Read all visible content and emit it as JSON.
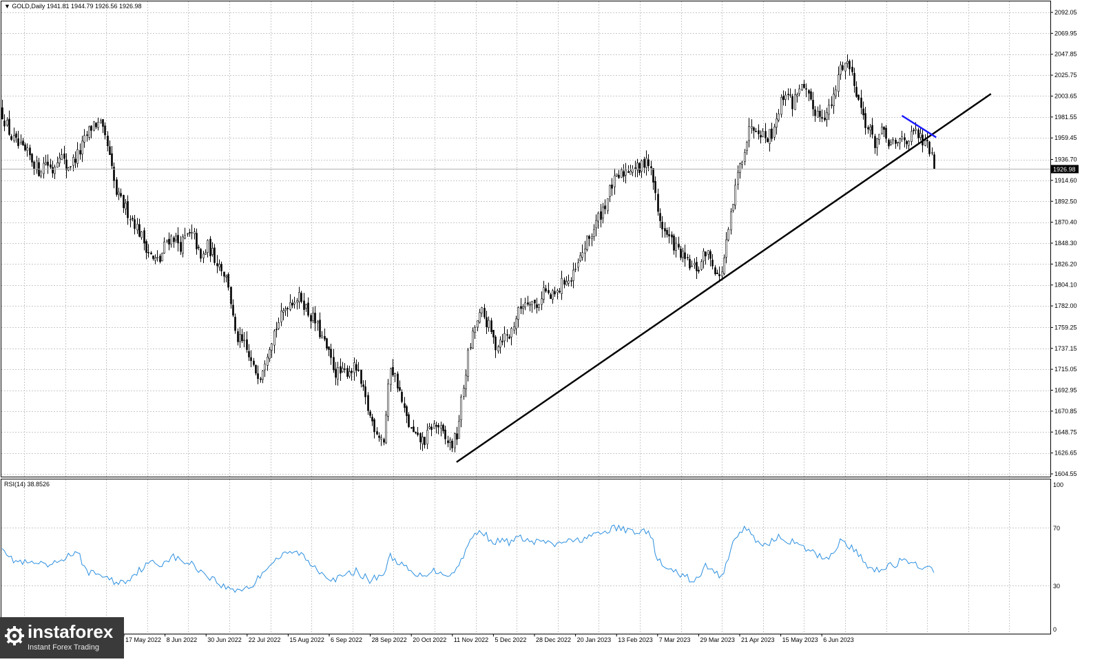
{
  "main_header": "▼ GOLD,Daily  1941.81 1944.79 1926.56 1926.98",
  "rsi_header": "RSI(14) 38.8526",
  "last_price_label": "1926.98",
  "logo": {
    "name": "instaforex",
    "tagline": "Instant Forex Trading"
  },
  "colors": {
    "candles": "#000000",
    "support_line": "#000000",
    "resistance_line": "#1a1aff",
    "rsi_line": "#2b8fe0",
    "grid": "#c8c8c8",
    "background": "#ffffff"
  },
  "chart_data": [
    {
      "type": "candlestick",
      "symbol": "GOLD",
      "timeframe": "Daily",
      "last": {
        "open": 1941.81,
        "high": 1944.79,
        "low": 1926.56,
        "close": 1926.98
      },
      "ylim": [
        1604.55,
        2100
      ],
      "y_ticks": [
        "2092.05",
        "2069.95",
        "2047.85",
        "2025.75",
        "2003.65",
        "1981.55",
        "1959.45",
        "1936.70",
        "1914.60",
        "1892.50",
        "1870.40",
        "1848.30",
        "1826.20",
        "1804.10",
        "1782.00",
        "1759.25",
        "1737.15",
        "1715.05",
        "1692.95",
        "1670.85",
        "1648.75",
        "1626.65",
        "1604.55"
      ],
      "x_ticks": [
        "17 May 2022",
        "8 Jun 2022",
        "30 Jun 2022",
        "22 Jul 2022",
        "15 Aug 2022",
        "6 Sep 2022",
        "28 Sep 2022",
        "20 Oct 2022",
        "11 Nov 2022",
        "5 Dec 2022",
        "28 Dec 2022",
        "20 Jan 2023",
        "13 Feb 2023",
        "7 Mar 2023",
        "29 Mar 2023",
        "21 Apr 2023",
        "15 May 2023",
        "6 Jun 2023"
      ],
      "close_path": [
        [
          0,
          1985
        ],
        [
          4,
          1960
        ],
        [
          8,
          1948
        ],
        [
          12,
          1940
        ],
        [
          16,
          1925
        ],
        [
          19,
          1935
        ],
        [
          22,
          1925
        ],
        [
          25,
          1945
        ],
        [
          28,
          1928
        ],
        [
          31,
          1935
        ],
        [
          34,
          1945
        ],
        [
          37,
          1962
        ],
        [
          40,
          1975
        ],
        [
          43,
          1972
        ],
        [
          46,
          1950
        ],
        [
          50,
          1900
        ],
        [
          54,
          1885
        ],
        [
          58,
          1870
        ],
        [
          62,
          1850
        ],
        [
          66,
          1830
        ],
        [
          69,
          1830
        ],
        [
          72,
          1852
        ],
        [
          75,
          1855
        ],
        [
          78,
          1846
        ],
        [
          81,
          1856
        ],
        [
          84,
          1855
        ],
        [
          87,
          1830
        ],
        [
          90,
          1845
        ],
        [
          93,
          1833
        ],
        [
          96,
          1823
        ],
        [
          99,
          1805
        ],
        [
          102,
          1750
        ],
        [
          106,
          1740
        ],
        [
          110,
          1715
        ],
        [
          113,
          1710
        ],
        [
          116,
          1735
        ],
        [
          119,
          1755
        ],
        [
          122,
          1770
        ],
        [
          125,
          1785
        ],
        [
          128,
          1790
        ],
        [
          131,
          1790
        ],
        [
          134,
          1775
        ],
        [
          137,
          1765
        ],
        [
          140,
          1748
        ],
        [
          143,
          1730
        ],
        [
          146,
          1712
        ],
        [
          149,
          1710
        ],
        [
          152,
          1715
        ],
        [
          155,
          1716
        ],
        [
          158,
          1690
        ],
        [
          161,
          1665
        ],
        [
          164,
          1650
        ],
        [
          167,
          1640
        ],
        [
          170,
          1720
        ],
        [
          173,
          1700
        ],
        [
          176,
          1670
        ],
        [
          179,
          1650
        ],
        [
          182,
          1640
        ],
        [
          185,
          1640
        ],
        [
          188,
          1655
        ],
        [
          191,
          1655
        ],
        [
          194,
          1640
        ],
        [
          197,
          1636
        ],
        [
          199,
          1645
        ],
        [
          201,
          1680
        ],
        [
          204,
          1730
        ],
        [
          207,
          1760
        ],
        [
          210,
          1775
        ],
        [
          213,
          1760
        ],
        [
          216,
          1740
        ],
        [
          219,
          1750
        ],
        [
          222,
          1750
        ],
        [
          225,
          1770
        ],
        [
          228,
          1785
        ],
        [
          231,
          1790
        ],
        [
          234,
          1780
        ],
        [
          237,
          1800
        ],
        [
          240,
          1790
        ],
        [
          243,
          1795
        ],
        [
          246,
          1810
        ],
        [
          249,
          1808
        ],
        [
          252,
          1825
        ],
        [
          255,
          1845
        ],
        [
          258,
          1858
        ],
        [
          261,
          1875
        ],
        [
          264,
          1890
        ],
        [
          267,
          1910
        ],
        [
          270,
          1918
        ],
        [
          273,
          1925
        ],
        [
          276,
          1930
        ],
        [
          279,
          1925
        ],
        [
          282,
          1940
        ],
        [
          285,
          1915
        ],
        [
          287,
          1880
        ],
        [
          290,
          1860
        ],
        [
          293,
          1850
        ],
        [
          296,
          1840
        ],
        [
          299,
          1830
        ],
        [
          302,
          1822
        ],
        [
          305,
          1822
        ],
        [
          308,
          1840
        ],
        [
          311,
          1828
        ],
        [
          314,
          1810
        ],
        [
          316,
          1832
        ],
        [
          319,
          1875
        ],
        [
          322,
          1920
        ],
        [
          325,
          1950
        ],
        [
          328,
          1975
        ],
        [
          331,
          1970
        ],
        [
          334,
          1960
        ],
        [
          337,
          1965
        ],
        [
          340,
          1990
        ],
        [
          343,
          2010
        ],
        [
          346,
          1995
        ],
        [
          349,
          2015
        ],
        [
          352,
          2005
        ],
        [
          355,
          1990
        ],
        [
          358,
          1985
        ],
        [
          361,
          1985
        ],
        [
          364,
          2000
        ],
        [
          367,
          2035
        ],
        [
          370,
          2040
        ],
        [
          373,
          2020
        ],
        [
          376,
          1990
        ],
        [
          379,
          1970
        ],
        [
          382,
          1955
        ],
        [
          385,
          1965
        ],
        [
          388,
          1955
        ],
        [
          391,
          1950
        ],
        [
          394,
          1960
        ],
        [
          397,
          1958
        ],
        [
          400,
          1965
        ],
        [
          403,
          1955
        ],
        [
          406,
          1948
        ],
        [
          408,
          1926.98
        ]
      ],
      "support_line": {
        "from": [
          199,
          1617
        ],
        "to": [
          433,
          2006
        ]
      },
      "resistance_line": {
        "from": [
          394,
          1983
        ],
        "to": [
          409,
          1960
        ]
      }
    },
    {
      "type": "line",
      "name": "RSI(14)",
      "last_value": 38.8526,
      "ylim": [
        0,
        100
      ],
      "y_ticks": [
        "100",
        "70",
        "30",
        "0"
      ],
      "values": [
        [
          0,
          58
        ],
        [
          4,
          48
        ],
        [
          8,
          46
        ],
        [
          12,
          45
        ],
        [
          16,
          45
        ],
        [
          19,
          43
        ],
        [
          22,
          44
        ],
        [
          25,
          47
        ],
        [
          28,
          50
        ],
        [
          31,
          52
        ],
        [
          34,
          50
        ],
        [
          37,
          40
        ],
        [
          40,
          38
        ],
        [
          43,
          38
        ],
        [
          46,
          35
        ],
        [
          50,
          32
        ],
        [
          54,
          33
        ],
        [
          58,
          38
        ],
        [
          62,
          43
        ],
        [
          66,
          46
        ],
        [
          69,
          44
        ],
        [
          72,
          48
        ],
        [
          75,
          50
        ],
        [
          78,
          47
        ],
        [
          81,
          46
        ],
        [
          84,
          44
        ],
        [
          87,
          40
        ],
        [
          90,
          37
        ],
        [
          93,
          34
        ],
        [
          96,
          30
        ],
        [
          99,
          28
        ],
        [
          102,
          27
        ],
        [
          106,
          28
        ],
        [
          110,
          30
        ],
        [
          113,
          37
        ],
        [
          116,
          43
        ],
        [
          119,
          47
        ],
        [
          122,
          50
        ],
        [
          125,
          52
        ],
        [
          128,
          53
        ],
        [
          131,
          52
        ],
        [
          134,
          46
        ],
        [
          137,
          43
        ],
        [
          140,
          39
        ],
        [
          143,
          36
        ],
        [
          146,
          34
        ],
        [
          149,
          36
        ],
        [
          152,
          38
        ],
        [
          155,
          40
        ],
        [
          158,
          37
        ],
        [
          161,
          33
        ],
        [
          164,
          36
        ],
        [
          167,
          38
        ],
        [
          170,
          50
        ],
        [
          173,
          47
        ],
        [
          176,
          43
        ],
        [
          179,
          39
        ],
        [
          182,
          36
        ],
        [
          185,
          38
        ],
        [
          188,
          40
        ],
        [
          191,
          40
        ],
        [
          194,
          38
        ],
        [
          197,
          38
        ],
        [
          199,
          41
        ],
        [
          201,
          48
        ],
        [
          204,
          58
        ],
        [
          207,
          65
        ],
        [
          210,
          68
        ],
        [
          213,
          63
        ],
        [
          216,
          60
        ],
        [
          219,
          61
        ],
        [
          222,
          60
        ],
        [
          225,
          62
        ],
        [
          228,
          63
        ],
        [
          231,
          60
        ],
        [
          234,
          60
        ],
        [
          237,
          61
        ],
        [
          240,
          58
        ],
        [
          243,
          58
        ],
        [
          246,
          61
        ],
        [
          249,
          60
        ],
        [
          252,
          61
        ],
        [
          255,
          63
        ],
        [
          258,
          64
        ],
        [
          261,
          65
        ],
        [
          264,
          67
        ],
        [
          267,
          69
        ],
        [
          270,
          70
        ],
        [
          273,
          68
        ],
        [
          276,
          68
        ],
        [
          279,
          67
        ],
        [
          282,
          68
        ],
        [
          285,
          60
        ],
        [
          287,
          48
        ],
        [
          290,
          42
        ],
        [
          293,
          40
        ],
        [
          296,
          38
        ],
        [
          299,
          36
        ],
        [
          302,
          34
        ],
        [
          305,
          34
        ],
        [
          308,
          44
        ],
        [
          311,
          40
        ],
        [
          314,
          37
        ],
        [
          316,
          40
        ],
        [
          319,
          55
        ],
        [
          322,
          65
        ],
        [
          325,
          70
        ],
        [
          328,
          65
        ],
        [
          331,
          60
        ],
        [
          334,
          58
        ],
        [
          337,
          61
        ],
        [
          340,
          63
        ],
        [
          343,
          62
        ],
        [
          346,
          60
        ],
        [
          349,
          57
        ],
        [
          352,
          55
        ],
        [
          355,
          53
        ],
        [
          358,
          50
        ],
        [
          361,
          49
        ],
        [
          364,
          53
        ],
        [
          367,
          61
        ],
        [
          370,
          58
        ],
        [
          373,
          55
        ],
        [
          376,
          49
        ],
        [
          379,
          44
        ],
        [
          382,
          41
        ],
        [
          385,
          42
        ],
        [
          388,
          44
        ],
        [
          391,
          44
        ],
        [
          394,
          48
        ],
        [
          397,
          44
        ],
        [
          400,
          45
        ],
        [
          403,
          43
        ],
        [
          406,
          41
        ],
        [
          408,
          38.85
        ]
      ]
    }
  ]
}
